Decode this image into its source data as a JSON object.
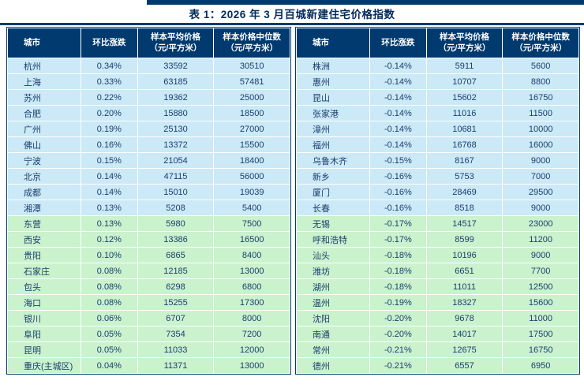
{
  "page": {
    "title": "表 1：2026 年 3 月百城新建住宅价格指数"
  },
  "columns": [
    {
      "title": "城市",
      "unit": ""
    },
    {
      "title": "环比涨跌",
      "unit": ""
    },
    {
      "title": "样本平均价格",
      "unit": "（元/平方米）"
    },
    {
      "title": "样本价格中位数",
      "unit": "（元/平方米）"
    }
  ],
  "left_table": {
    "group_split": 10,
    "rows": [
      [
        "杭州",
        "0.34%",
        "33592",
        "30510"
      ],
      [
        "上海",
        "0.33%",
        "63185",
        "57481"
      ],
      [
        "苏州",
        "0.22%",
        "19362",
        "25000"
      ],
      [
        "合肥",
        "0.20%",
        "15880",
        "18500"
      ],
      [
        "广州",
        "0.19%",
        "25130",
        "27000"
      ],
      [
        "佛山",
        "0.16%",
        "13372",
        "15500"
      ],
      [
        "宁波",
        "0.15%",
        "21054",
        "18400"
      ],
      [
        "北京",
        "0.14%",
        "47115",
        "56000"
      ],
      [
        "成都",
        "0.14%",
        "15010",
        "19039"
      ],
      [
        "湘潭",
        "0.13%",
        "5208",
        "5400"
      ],
      [
        "东营",
        "0.13%",
        "5980",
        "7500"
      ],
      [
        "西安",
        "0.12%",
        "13386",
        "16500"
      ],
      [
        "贵阳",
        "0.10%",
        "6865",
        "8400"
      ],
      [
        "石家庄",
        "0.08%",
        "12185",
        "13000"
      ],
      [
        "包头",
        "0.08%",
        "6298",
        "6800"
      ],
      [
        "海口",
        "0.08%",
        "15255",
        "17300"
      ],
      [
        "银川",
        "0.06%",
        "6707",
        "8000"
      ],
      [
        "阜阳",
        "0.05%",
        "7354",
        "7200"
      ],
      [
        "昆明",
        "0.05%",
        "11033",
        "12000"
      ],
      [
        "重庆(主城区)",
        "0.04%",
        "11371",
        "13000"
      ]
    ]
  },
  "right_table": {
    "group_split": 10,
    "rows": [
      [
        "株洲",
        "-0.14%",
        "5911",
        "5600"
      ],
      [
        "惠州",
        "-0.14%",
        "10707",
        "8800"
      ],
      [
        "昆山",
        "-0.14%",
        "15602",
        "16750"
      ],
      [
        "张家港",
        "-0.14%",
        "11016",
        "11500"
      ],
      [
        "漳州",
        "-0.14%",
        "10681",
        "10000"
      ],
      [
        "福州",
        "-0.14%",
        "16768",
        "16000"
      ],
      [
        "乌鲁木齐",
        "-0.15%",
        "8167",
        "9000"
      ],
      [
        "新乡",
        "-0.16%",
        "5753",
        "7000"
      ],
      [
        "厦门",
        "-0.16%",
        "28469",
        "29500"
      ],
      [
        "长春",
        "-0.16%",
        "8518",
        "9000"
      ],
      [
        "无锡",
        "-0.17%",
        "14517",
        "23000"
      ],
      [
        "呼和浩特",
        "-0.17%",
        "8599",
        "11200"
      ],
      [
        "汕头",
        "-0.18%",
        "10196",
        "9000"
      ],
      [
        "潍坊",
        "-0.18%",
        "6651",
        "7700"
      ],
      [
        "湖州",
        "-0.18%",
        "11011",
        "12500"
      ],
      [
        "温州",
        "-0.19%",
        "18327",
        "15600"
      ],
      [
        "沈阳",
        "-0.20%",
        "9678",
        "11000"
      ],
      [
        "南通",
        "-0.20%",
        "14017",
        "17500"
      ],
      [
        "常州",
        "-0.21%",
        "12675",
        "16750"
      ],
      [
        "德州",
        "-0.21%",
        "6557",
        "6950"
      ]
    ]
  },
  "colors": {
    "header_bg": "#003a6e",
    "row_blue": "#cbe9f6",
    "row_green": "#c9f2cd",
    "cell_text": "#1c3e6e",
    "title_color": "#002b5c"
  }
}
